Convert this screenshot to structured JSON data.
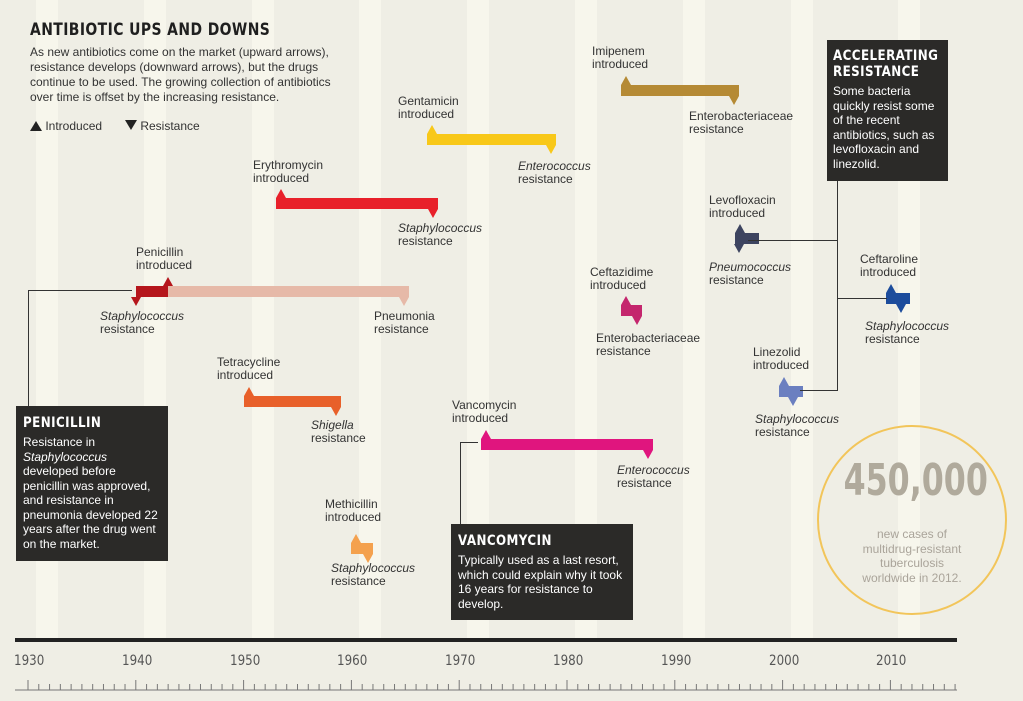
{
  "title": "ANTIBIOTIC UPS AND DOWNS",
  "intro": "As new antibiotics come on the market (upward arrows), resistance develops (downward arrows), but the drugs continue to be used. The growing collection of antibiotics over time is offset by the increasing resistance.",
  "legend": {
    "introduced": "Introduced",
    "resistance": "Resistance"
  },
  "chart_data": {
    "type": "timeline",
    "x_axis": {
      "ticks": [
        "1930",
        "1940",
        "1950",
        "1960",
        "1970",
        "1980",
        "1990",
        "2000",
        "2010"
      ],
      "range": [
        1929,
        2016
      ]
    },
    "series": [
      {
        "drug": "Penicillin",
        "introduced": 1943,
        "resistance_events": [
          {
            "year": 1940,
            "organism": "Staphylococcus",
            "italic": true
          },
          {
            "year": 1965,
            "organism": "Pneumonia",
            "italic": false
          }
        ],
        "color": "#b5161c",
        "tail_color": "#e6b9a8"
      },
      {
        "drug": "Tetracycline",
        "introduced": 1950,
        "resistance_events": [
          {
            "year": 1959,
            "organism": "Shigella",
            "italic": true
          }
        ],
        "color": "#e8602a"
      },
      {
        "drug": "Erythromycin",
        "introduced": 1953,
        "resistance_events": [
          {
            "year": 1968,
            "organism": "Staphylococcus",
            "italic": true
          }
        ],
        "color": "#e8202a"
      },
      {
        "drug": "Methicillin",
        "introduced": 1960,
        "resistance_events": [
          {
            "year": 1962,
            "organism": "Staphylococcus",
            "italic": true
          }
        ],
        "color": "#f4a14e"
      },
      {
        "drug": "Gentamicin",
        "introduced": 1967,
        "resistance_events": [
          {
            "year": 1979,
            "organism": "Enterococcus",
            "italic": true
          }
        ],
        "color": "#f8c819"
      },
      {
        "drug": "Vancomycin",
        "introduced": 1972,
        "resistance_events": [
          {
            "year": 1988,
            "organism": "Enterococcus",
            "italic": true
          }
        ],
        "color": "#e0157e"
      },
      {
        "drug": "Imipenem",
        "introduced": 1985,
        "resistance_events": [
          {
            "year": 1996,
            "organism": "Enterobacteriaceae",
            "italic": false
          }
        ],
        "color": "#b58a35"
      },
      {
        "drug": "Ceftazidime",
        "introduced": 1985,
        "resistance_events": [
          {
            "year": 1987,
            "organism": "Enterobacteriaceae",
            "italic": false
          }
        ],
        "color": "#c4266d"
      },
      {
        "drug": "Levofloxacin",
        "introduced": 1996,
        "resistance_events": [
          {
            "year": 1996,
            "organism": "Pneumococcus",
            "italic": true
          }
        ],
        "color": "#3d4460"
      },
      {
        "drug": "Linezolid",
        "introduced": 2000,
        "resistance_events": [
          {
            "year": 2001,
            "organism": "Staphylococcus",
            "italic": true
          }
        ],
        "color": "#6b7fc0"
      },
      {
        "drug": "Ceftaroline",
        "introduced": 2010,
        "resistance_events": [
          {
            "year": 2011,
            "organism": "Staphylococcus",
            "italic": true
          }
        ],
        "color": "#1c4c9c"
      }
    ]
  },
  "text_labels": {
    "penicillin_intro": [
      "Penicillin",
      "introduced"
    ],
    "penicillin_res1": [
      "Staphylococcus",
      "resistance"
    ],
    "penicillin_res2": [
      "Pneumonia",
      "resistance"
    ],
    "tetracycline_intro": [
      "Tetracycline",
      "introduced"
    ],
    "tetracycline_res": [
      "Shigella",
      "resistance"
    ],
    "erythromycin_intro": [
      "Erythromycin",
      "introduced"
    ],
    "erythromycin_res": [
      "Staphylococcus",
      "resistance"
    ],
    "methicillin_intro": [
      "Methicillin",
      "introduced"
    ],
    "methicillin_res": [
      "Staphylococcus",
      "resistance"
    ],
    "gentamicin_intro": [
      "Gentamicin",
      "introduced"
    ],
    "gentamicin_res": [
      "Enterococcus",
      "resistance"
    ],
    "vancomycin_intro": [
      "Vancomycin",
      "introduced"
    ],
    "vancomycin_res": [
      "Enterococcus",
      "resistance"
    ],
    "imipenem_intro": [
      "Imipenem",
      "introduced"
    ],
    "imipenem_res": [
      "Enterobacteriaceae",
      "resistance"
    ],
    "ceftazidime_intro": [
      "Ceftazidime",
      "introduced"
    ],
    "ceftazidime_res": [
      "Enterobacteriaceae",
      "resistance"
    ],
    "levofloxacin_intro": [
      "Levofloxacin",
      "introduced"
    ],
    "levofloxacin_res": [
      "Pneumococcus",
      "resistance"
    ],
    "linezolid_intro": [
      "Linezolid",
      "introduced"
    ],
    "linezolid_res": [
      "Staphylococcus",
      "resistance"
    ],
    "ceftaroline_intro": [
      "Ceftaroline",
      "introduced"
    ],
    "ceftaroline_res": [
      "Staphylococcus",
      "resistance"
    ]
  },
  "callouts": {
    "penicillin": {
      "heading": "PENICILLIN",
      "text_before": "Resistance in ",
      "text_italic": "Staphylococcus",
      "text_after": " developed before penicillin was approved, and resistance in pneumonia developed 22 years after the drug went on the market."
    },
    "vancomycin": {
      "heading": "VANCOMYCIN",
      "text": "Typically used as a last resort, which could explain why it took 16 years for resistance to develop."
    },
    "accelerating": {
      "heading_line1": "ACCELERATING",
      "heading_line2": "RESISTANCE",
      "text": "Some bacteria quickly resist some of the recent antibiotics, such as levofloxacin and linezolid."
    }
  },
  "tb_stat": {
    "value": "450,000",
    "text": "new cases of multidrug-resistant tuberculosis worldwide in 2012."
  }
}
